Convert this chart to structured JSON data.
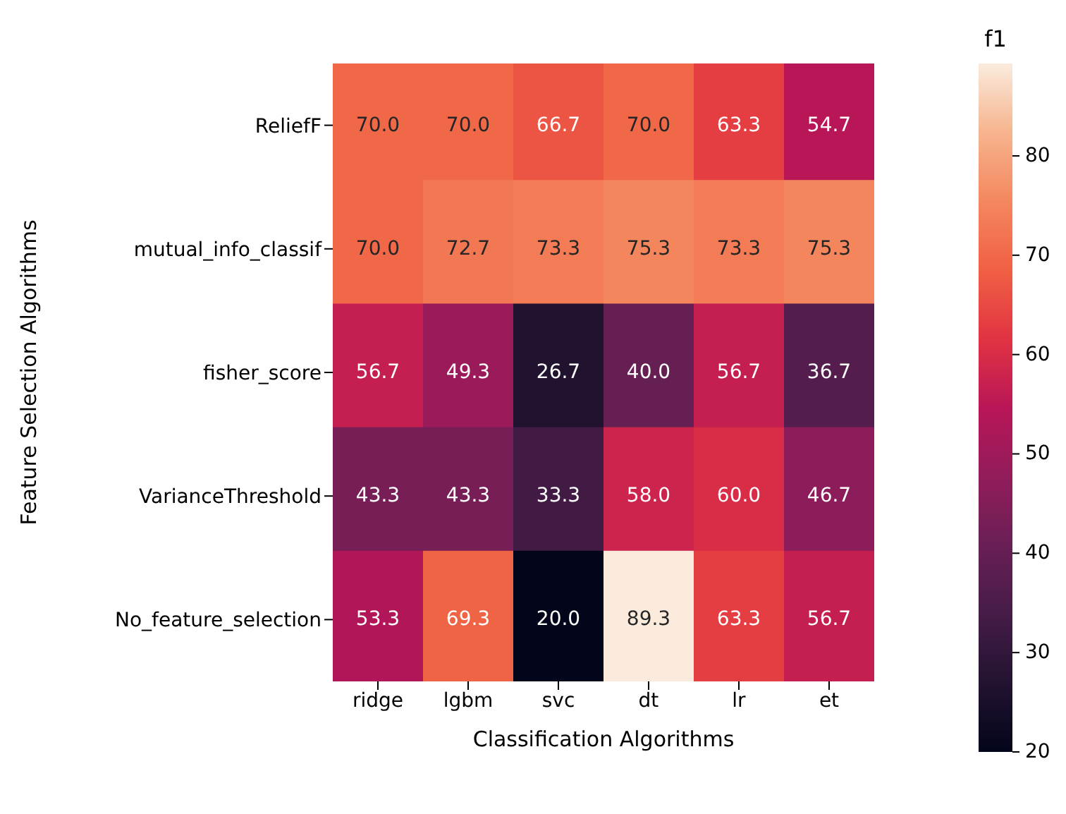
{
  "chart_data": {
    "type": "heatmap",
    "xlabel": "Classification Algorithms",
    "ylabel": "Feature Selection Algorithms",
    "clabel": "f1",
    "categories": [
      "ridge",
      "lgbm",
      "svc",
      "dt",
      "lr",
      "et"
    ],
    "y_categories": [
      "ReliefF",
      "mutual_info_classif",
      "fisher_score",
      "VarianceThreshold",
      "No_feature_selection"
    ],
    "cells": [
      [
        70.0,
        70.0,
        66.7,
        70.0,
        63.3,
        54.7
      ],
      [
        70.0,
        72.7,
        73.3,
        75.3,
        73.3,
        75.3
      ],
      [
        56.7,
        49.3,
        26.7,
        40.0,
        56.7,
        36.7
      ],
      [
        43.3,
        43.3,
        33.3,
        58.0,
        60.0,
        46.7
      ],
      [
        53.3,
        69.3,
        20.0,
        89.3,
        63.3,
        56.7
      ]
    ],
    "cell_labels": [
      [
        "70.0",
        "70.0",
        "66.7",
        "70.0",
        "63.3",
        "54.7"
      ],
      [
        "70.0",
        "72.7",
        "73.3",
        "75.3",
        "73.3",
        "75.3"
      ],
      [
        "56.7",
        "49.3",
        "26.7",
        "40.0",
        "56.7",
        "36.7"
      ],
      [
        "43.3",
        "43.3",
        "33.3",
        "58.0",
        "60.0",
        "46.7"
      ],
      [
        "53.3",
        "69.3",
        "20.0",
        "89.3",
        "63.3",
        "56.7"
      ]
    ],
    "clim": [
      20,
      89.3
    ],
    "cticks": [
      20,
      30,
      40,
      50,
      60,
      70,
      80
    ]
  }
}
